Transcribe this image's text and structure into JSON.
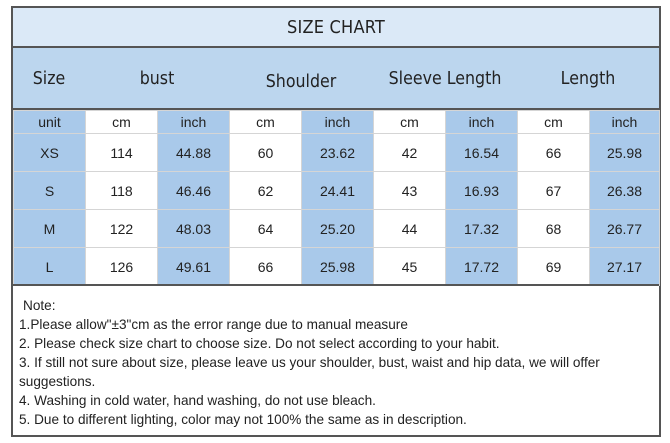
{
  "title": "SIZE CHART",
  "headers": [
    "Size",
    "bust",
    "Shoulder",
    "Sleeve Length",
    "Length"
  ],
  "unit_row": [
    "unit",
    "cm",
    "inch",
    "cm",
    "inch",
    "cm",
    "inch",
    "cm",
    "inch"
  ],
  "rows": [
    [
      "XS",
      "114",
      "44.88",
      "60",
      "23.62",
      "42",
      "16.54",
      "66",
      "25.98"
    ],
    [
      "S",
      "118",
      "46.46",
      "62",
      "24.41",
      "43",
      "16.93",
      "67",
      "26.38"
    ],
    [
      "M",
      "122",
      "48.03",
      "64",
      "25.20",
      "44",
      "17.32",
      "68",
      "26.77"
    ],
    [
      "L",
      "126",
      "49.61",
      "66",
      "25.98",
      "45",
      "17.72",
      "69",
      "27.17"
    ]
  ],
  "notes": {
    "title": "Note:",
    "items": [
      "1.Please allow\"±3\"cm as the error range due to manual measure",
      "2. Please check size chart to choose size. Do not select according to your habit.",
      "3. If still not sure about size, please leave us your shoulder, bust, waist and hip data, we will offer suggestions.",
      "4. Washing in cold water, hand washing, do not use bleach.",
      "5. Due to different lighting, color may not 100% the same as in description."
    ]
  },
  "colors": {
    "title_bg": "#dbe9f7",
    "header_bg": "#bcd6ee",
    "cell_blue": "#a9c9ea",
    "cell_white": "#ffffff"
  }
}
